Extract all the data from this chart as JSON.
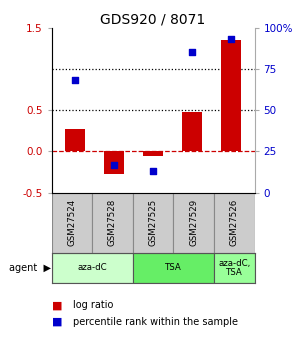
{
  "title": "GDS920 / 8071",
  "samples": [
    "GSM27524",
    "GSM27528",
    "GSM27525",
    "GSM27529",
    "GSM27526"
  ],
  "log_ratio": [
    0.27,
    -0.27,
    -0.05,
    0.48,
    1.35
  ],
  "percentile": [
    68,
    17,
    13,
    85,
    93
  ],
  "bar_color": "#cc0000",
  "dot_color": "#0000cc",
  "ylim_left": [
    -0.5,
    1.5
  ],
  "ylim_right": [
    0,
    100
  ],
  "yticks_left": [
    -0.5,
    0.0,
    0.5,
    1.5
  ],
  "yticks_right": [
    0,
    25,
    50,
    75,
    100
  ],
  "hline_zero_color": "#cc0000",
  "hline_zero_style": "dashed",
  "hline_half_color": "#000000",
  "hline_half_style": "dotted",
  "hline_one_color": "#000000",
  "hline_one_style": "dotted",
  "agent_groups": [
    {
      "label": "aza-dC",
      "cols": [
        0,
        1
      ],
      "color": "#ccffcc"
    },
    {
      "label": "TSA",
      "cols": [
        2,
        3
      ],
      "color": "#66ee66"
    },
    {
      "label": "aza-dC,\nTSA",
      "cols": [
        4
      ],
      "color": "#99ff99"
    }
  ],
  "bar_width": 0.5,
  "dot_size": 25,
  "background_color": "#ffffff",
  "tick_label_color_left": "#cc0000",
  "tick_label_color_right": "#0000cc",
  "sample_box_color": "#cccccc",
  "sample_box_edge": "#888888"
}
